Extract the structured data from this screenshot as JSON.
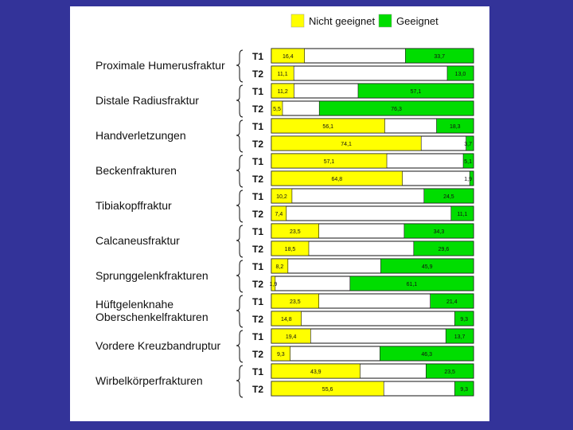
{
  "colors": {
    "background": "#333399",
    "nicht_geeignet": "#ffff00",
    "geeignet": "#00dd00",
    "neutral": "#ffffff"
  },
  "chart_data": {
    "type": "bar",
    "stacked": true,
    "orientation": "horizontal",
    "x_range": [
      0,
      100
    ],
    "legend": {
      "placement": "top-right",
      "entries": [
        "Nicht geeignet",
        "Geeignet"
      ]
    },
    "series": [
      {
        "name": "Nicht geeignet",
        "color": "#ffff00"
      },
      {
        "name": "Geeignet",
        "color": "#00dd00"
      }
    ],
    "categories": [
      {
        "label": [
          "Proximale Humerusfraktur"
        ],
        "rows": [
          {
            "t": "T1",
            "nicht": 16.4,
            "nicht_label": "16,4",
            "geeignet": 33.7,
            "geeignet_label": "33,7"
          },
          {
            "t": "T2",
            "nicht": 11.1,
            "nicht_label": "11,1",
            "geeignet": 13.0,
            "geeignet_label": "13,0"
          }
        ]
      },
      {
        "label": [
          "Distale Radiusfraktur"
        ],
        "rows": [
          {
            "t": "T1",
            "nicht": 11.2,
            "nicht_label": "11,2",
            "geeignet": 57.1,
            "geeignet_label": "57,1"
          },
          {
            "t": "T2",
            "nicht": 5.5,
            "nicht_label": "5,5",
            "geeignet": 76.3,
            "geeignet_label": "76,3"
          }
        ]
      },
      {
        "label": [
          "Handverletzungen"
        ],
        "rows": [
          {
            "t": "T1",
            "nicht": 56.1,
            "nicht_label": "56,1",
            "geeignet": 18.3,
            "geeignet_label": "18,3"
          },
          {
            "t": "T2",
            "nicht": 74.1,
            "nicht_label": "74,1",
            "geeignet": 3.7,
            "geeignet_label": "3,7"
          }
        ]
      },
      {
        "label": [
          "Beckenfrakturen"
        ],
        "rows": [
          {
            "t": "T1",
            "nicht": 57.1,
            "nicht_label": "57,1",
            "geeignet": 5.1,
            "geeignet_label": "5,1"
          },
          {
            "t": "T2",
            "nicht": 64.8,
            "nicht_label": "64,8",
            "geeignet": 1.9,
            "geeignet_label": "1,9"
          }
        ]
      },
      {
        "label": [
          "Tibiakopffraktur"
        ],
        "rows": [
          {
            "t": "T1",
            "nicht": 10.2,
            "nicht_label": "10,2",
            "geeignet": 24.5,
            "geeignet_label": "24,5"
          },
          {
            "t": "T2",
            "nicht": 7.4,
            "nicht_label": "7,4",
            "geeignet": 11.1,
            "geeignet_label": "11,1"
          }
        ]
      },
      {
        "label": [
          "Calcaneusfraktur"
        ],
        "rows": [
          {
            "t": "T1",
            "nicht": 23.5,
            "nicht_label": "23,5",
            "geeignet": 34.3,
            "geeignet_label": "34,3"
          },
          {
            "t": "T2",
            "nicht": 18.5,
            "nicht_label": "18,5",
            "geeignet": 29.6,
            "geeignet_label": "29,6"
          }
        ]
      },
      {
        "label": [
          "Sprunggelenkfrakturen"
        ],
        "rows": [
          {
            "t": "T1",
            "nicht": 8.2,
            "nicht_label": "8,2",
            "geeignet": 45.9,
            "geeignet_label": "45,9"
          },
          {
            "t": "T2",
            "nicht": 1.9,
            "nicht_label": "1,9",
            "geeignet": 61.1,
            "geeignet_label": "61,1"
          }
        ]
      },
      {
        "label": [
          "Hüftgelenknahe",
          "Oberschenkelfrakturen"
        ],
        "rows": [
          {
            "t": "T1",
            "nicht": 23.5,
            "nicht_label": "23,5",
            "geeignet": 21.4,
            "geeignet_label": "21,4"
          },
          {
            "t": "T2",
            "nicht": 14.8,
            "nicht_label": "14,8",
            "geeignet": 9.3,
            "geeignet_label": "9,3"
          }
        ]
      },
      {
        "label": [
          "Vordere Kreuzbandruptur"
        ],
        "rows": [
          {
            "t": "T1",
            "nicht": 19.4,
            "nicht_label": "19,4",
            "geeignet": 13.7,
            "geeignet_label": "13,7"
          },
          {
            "t": "T2",
            "nicht": 9.3,
            "nicht_label": "9,3",
            "geeignet": 46.3,
            "geeignet_label": "46,3"
          }
        ]
      },
      {
        "label": [
          "Wirbelkörperfrakturen"
        ],
        "rows": [
          {
            "t": "T1",
            "nicht": 43.9,
            "nicht_label": "43,9",
            "geeignet": 23.5,
            "geeignet_label": "23,5"
          },
          {
            "t": "T2",
            "nicht": 55.6,
            "nicht_label": "55,6",
            "geeignet": 9.3,
            "geeignet_label": "9,3"
          }
        ]
      }
    ]
  }
}
